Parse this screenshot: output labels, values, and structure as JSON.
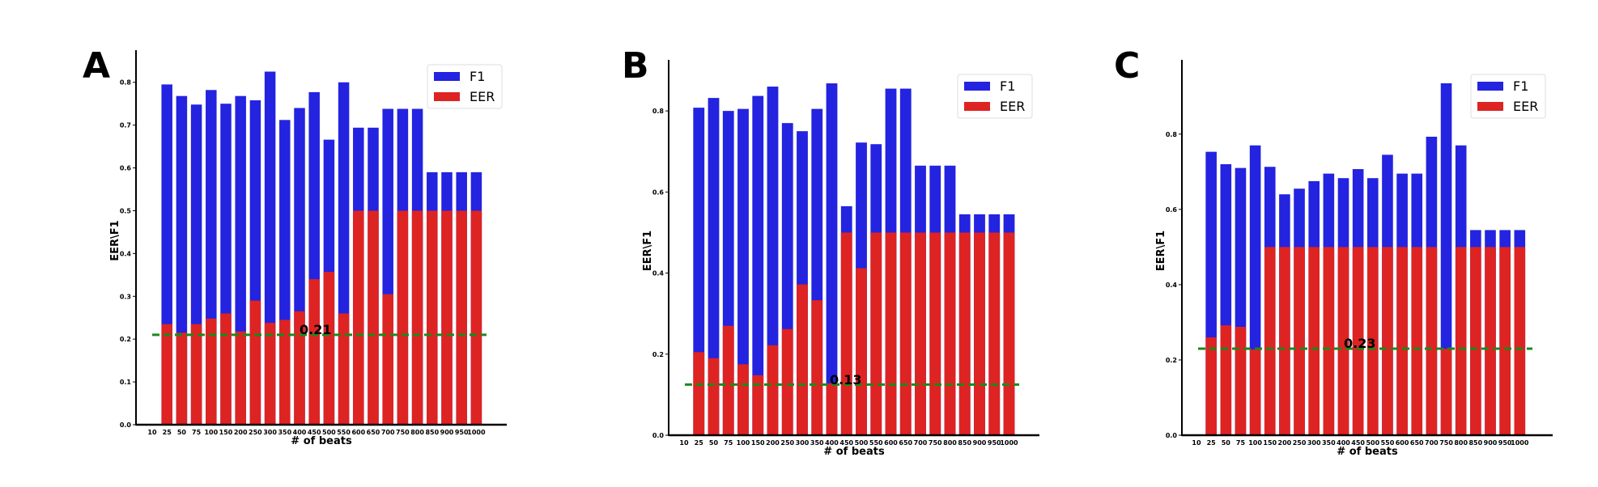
{
  "chart_data": [
    {
      "type": "bar",
      "panel": "A",
      "categories": [
        "10",
        "25",
        "50",
        "75",
        "100",
        "150",
        "200",
        "250",
        "300",
        "350",
        "400",
        "450",
        "500",
        "550",
        "600",
        "650",
        "700",
        "750",
        "800",
        "850",
        "900",
        "950",
        "1000"
      ],
      "series": [
        {
          "name": "F1",
          "color": "#2323e0",
          "values": [
            null,
            0.795,
            0.768,
            0.748,
            0.782,
            0.75,
            0.768,
            0.758,
            0.825,
            0.712,
            0.74,
            0.777,
            0.666,
            0.8,
            0.694,
            0.694,
            0.738,
            0.738,
            0.738,
            0.59,
            0.59,
            0.59,
            0.59
          ]
        },
        {
          "name": "EER",
          "color": "#de2323",
          "values": [
            null,
            0.235,
            0.215,
            0.235,
            0.248,
            0.26,
            0.218,
            0.29,
            0.238,
            0.245,
            0.265,
            0.34,
            0.357,
            0.26,
            0.5,
            0.5,
            0.305,
            0.5,
            0.5,
            0.5,
            0.5,
            0.5,
            0.5
          ]
        }
      ],
      "threshold": {
        "value": 0.21,
        "label": "0.21",
        "color": "#1a8a1a"
      },
      "ylim": [
        0,
        0.86
      ],
      "yticks": [
        "0.0",
        "0.1",
        "0.2",
        "0.3",
        "0.4",
        "0.5",
        "0.6",
        "0.7",
        "0.8"
      ],
      "xlabel": "# of beats",
      "ylabel": "EER\\F1",
      "legend": "top-right"
    },
    {
      "type": "bar",
      "panel": "B",
      "categories": [
        "10",
        "25",
        "50",
        "75",
        "100",
        "150",
        "200",
        "250",
        "300",
        "350",
        "400",
        "450",
        "500",
        "550",
        "600",
        "650",
        "700",
        "750",
        "800",
        "850",
        "900",
        "950",
        "1000"
      ],
      "series": [
        {
          "name": "F1",
          "color": "#2323e0",
          "values": [
            null,
            0.808,
            0.832,
            0.8,
            0.805,
            0.837,
            0.86,
            0.77,
            0.75,
            0.805,
            0.868,
            0.565,
            0.722,
            0.718,
            0.855,
            0.855,
            0.665,
            0.665,
            0.665,
            0.545,
            0.545,
            0.545,
            0.545
          ]
        },
        {
          "name": "EER",
          "color": "#de2323",
          "values": [
            null,
            0.205,
            0.19,
            0.27,
            0.175,
            0.148,
            0.222,
            0.262,
            0.372,
            0.333,
            0.128,
            0.5,
            0.412,
            0.5,
            0.5,
            0.5,
            0.5,
            0.5,
            0.5,
            0.5,
            0.5,
            0.5,
            0.5
          ]
        }
      ],
      "threshold": {
        "value": 0.125,
        "label": "0.13",
        "color": "#1a8a1a"
      },
      "ylim": [
        0,
        0.91
      ],
      "yticks": [
        "0.0",
        "0.2",
        "0.4",
        "0.6",
        "0.8"
      ],
      "xlabel": "# of beats",
      "ylabel": "EER\\F1",
      "legend": "top-right"
    },
    {
      "type": "bar",
      "panel": "C",
      "categories": [
        "10",
        "25",
        "50",
        "75",
        "100",
        "150",
        "200",
        "250",
        "300",
        "350",
        "400",
        "450",
        "500",
        "550",
        "600",
        "650",
        "700",
        "750",
        "800",
        "850",
        "900",
        "950",
        "1000"
      ],
      "series": [
        {
          "name": "F1",
          "color": "#2323e0",
          "values": [
            null,
            0.753,
            0.72,
            0.71,
            0.77,
            0.713,
            0.64,
            0.655,
            0.675,
            0.695,
            0.683,
            0.707,
            0.683,
            0.745,
            0.695,
            0.695,
            0.793,
            0.935,
            0.77,
            0.545,
            0.545,
            0.545,
            0.545
          ]
        },
        {
          "name": "EER",
          "color": "#de2323",
          "values": [
            null,
            0.26,
            0.292,
            0.288,
            0.228,
            0.5,
            0.5,
            0.5,
            0.5,
            0.5,
            0.5,
            0.5,
            0.5,
            0.5,
            0.5,
            0.5,
            0.5,
            0.23,
            0.5,
            0.5,
            0.5,
            0.5,
            0.5
          ]
        }
      ],
      "threshold": {
        "value": 0.23,
        "label": "0.23",
        "color": "#1a8a1a"
      },
      "ylim": [
        0,
        0.98
      ],
      "yticks": [
        "0.0",
        "0.2",
        "0.4",
        "0.6",
        "0.8"
      ],
      "xlabel": "# of beats",
      "ylabel": "EER\\F1",
      "legend": "top-right"
    }
  ]
}
